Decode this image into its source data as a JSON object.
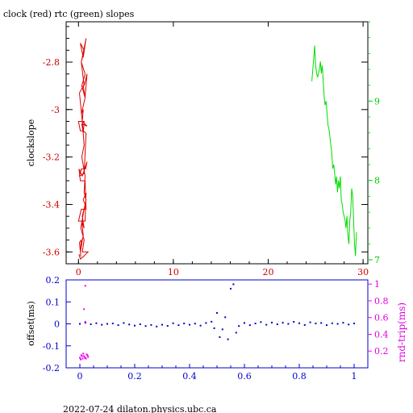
{
  "colors": {
    "clock": "#dd0000",
    "rtc": "#00dd00",
    "offset": "#0000cc",
    "rndtrip": "#ee00ee",
    "frame": "#000000"
  },
  "footer": "2022-07-24 dilaton.physics.ubc.ca",
  "chart_data": [
    {
      "type": "line",
      "title": "clock (red) rtc (green) slopes",
      "ylabel": "clockslope",
      "xlim": [
        -1.3,
        30.5
      ],
      "x_ticks": [
        0,
        10,
        20,
        30
      ],
      "ylim": [
        -3.65,
        -2.63
      ],
      "y_ticks": [
        -2.8,
        -3,
        -3.2,
        -3.4,
        -3.6
      ],
      "y_tick_labels": [
        "-2.8",
        "-3",
        "-3.2",
        "-3.4",
        "-3.6"
      ],
      "y2lim": [
        6.95,
        10.0
      ],
      "y2_ticks": [
        7,
        8,
        9
      ],
      "grid": false,
      "series": [
        {
          "name": "clock",
          "x": [
            0.25,
            0.1,
            0.3,
            0.2,
            0.5,
            0.35,
            0.6,
            0.4,
            0.7,
            0.5,
            0.8,
            0.7,
            0.2,
            0.0,
            0.3,
            0.8,
            0.7,
            0.2,
            0.05,
            0.4,
            0.9,
            0.75,
            0.3,
            0.1,
            0.6,
            0.8,
            0.5,
            0.2,
            0.0,
            0.6,
            0.5,
            0.35,
            0.9,
            0.4,
            0.1,
            0.5,
            0.7,
            0.35,
            0.7,
            0.3,
            0.6,
            0.2,
            0.5,
            0.8,
            0.3,
            0.6,
            0.9,
            0.7,
            0.3,
            0.5,
            0.4,
            0.6,
            0.35,
            0.7,
            0.6,
            0.8,
            0.5,
            0.25,
            0.6,
            0.4,
            1.0,
            0.5,
            0.2,
            0.05
          ],
          "y": [
            -3.62,
            -3.56,
            -3.55,
            -3.6,
            -3.53,
            -3.47,
            -3.5,
            -3.45,
            -3.4,
            -3.38,
            -3.35,
            -3.47,
            -3.47,
            -3.47,
            -3.42,
            -3.42,
            -3.3,
            -3.3,
            -3.25,
            -3.28,
            -3.22,
            -3.25,
            -3.25,
            -3.28,
            -3.27,
            -3.1,
            -3.09,
            -3.09,
            -3.05,
            -3.05,
            -3.1,
            -3.06,
            -3.07,
            -3.05,
            -2.93,
            -2.9,
            -2.95,
            -2.9,
            -2.85,
            -2.8,
            -2.75,
            -2.72,
            -2.78,
            -2.7,
            -2.8,
            -2.9,
            -2.85,
            -2.95,
            -3.02,
            -3.0,
            -3.05,
            -3.15,
            -3.2,
            -3.28,
            -3.35,
            -3.38,
            -3.44,
            -3.5,
            -3.55,
            -3.6,
            -3.6,
            -3.62,
            -3.63,
            -3.61
          ]
        },
        {
          "name": "rtc",
          "axis": "right",
          "x": [
            24.6,
            24.8,
            24.9,
            25.0,
            25.1,
            25.2,
            25.4,
            25.5,
            25.6,
            25.7,
            25.8,
            25.9,
            26.0,
            26.1,
            26.2,
            26.3,
            26.4,
            26.5,
            26.6,
            26.7,
            26.8,
            26.9,
            27.0,
            27.1,
            27.2,
            27.3,
            27.4,
            27.5,
            27.6,
            27.7,
            27.8,
            27.9,
            28.0,
            28.1,
            28.2,
            28.3,
            28.4,
            28.5,
            28.6,
            28.7,
            28.8,
            28.9,
            29.0,
            29.1,
            29.2,
            29.3
          ],
          "y": [
            9.25,
            9.55,
            9.7,
            9.45,
            9.35,
            9.3,
            9.4,
            9.5,
            9.35,
            9.45,
            9.25,
            9.05,
            8.95,
            9.0,
            8.85,
            8.7,
            8.65,
            8.55,
            8.45,
            8.35,
            8.15,
            8.2,
            8.1,
            7.95,
            8.05,
            7.85,
            8.0,
            7.9,
            8.05,
            7.75,
            7.7,
            7.6,
            7.55,
            7.5,
            7.4,
            7.55,
            7.3,
            7.2,
            7.5,
            7.6,
            7.9,
            7.8,
            7.5,
            7.2,
            7.05,
            7.35
          ]
        }
      ]
    },
    {
      "type": "scatter",
      "ylabel": "offset(ms)",
      "y2label": "rnd-trip(ms)",
      "xlim": [
        -0.05,
        1.05
      ],
      "x_ticks": [
        0,
        0.2,
        0.4,
        0.6,
        0.8,
        1
      ],
      "ylim": [
        -0.2,
        0.2
      ],
      "y_ticks": [
        0.2,
        0.1,
        0,
        -0.1,
        -0.2
      ],
      "y2lim": [
        0,
        1.05
      ],
      "y2_ticks": [
        0.2,
        0.4,
        0.6,
        0.8,
        1
      ],
      "grid": false,
      "series": [
        {
          "name": "offset",
          "x": [
            0.0,
            0.02,
            0.04,
            0.06,
            0.08,
            0.1,
            0.12,
            0.14,
            0.16,
            0.18,
            0.2,
            0.22,
            0.24,
            0.26,
            0.28,
            0.3,
            0.32,
            0.34,
            0.36,
            0.38,
            0.4,
            0.42,
            0.44,
            0.46,
            0.48,
            0.49,
            0.5,
            0.51,
            0.52,
            0.53,
            0.54,
            0.55,
            0.56,
            0.57,
            0.58,
            0.6,
            0.62,
            0.64,
            0.66,
            0.68,
            0.7,
            0.72,
            0.74,
            0.76,
            0.78,
            0.8,
            0.82,
            0.84,
            0.86,
            0.88,
            0.9,
            0.92,
            0.94,
            0.96,
            0.98,
            1.0
          ],
          "y": [
            0.0,
            0.005,
            -0.002,
            0.003,
            -0.004,
            0.0,
            0.002,
            -0.006,
            0.004,
            -0.003,
            -0.008,
            -0.002,
            -0.01,
            -0.005,
            -0.012,
            -0.004,
            -0.009,
            0.003,
            -0.006,
            0.002,
            -0.004,
            0.001,
            -0.008,
            0.004,
            0.01,
            -0.02,
            0.05,
            -0.06,
            -0.025,
            0.03,
            -0.07,
            0.16,
            0.18,
            -0.04,
            -0.01,
            0.004,
            -0.006,
            0.002,
            0.008,
            -0.004,
            0.006,
            -0.002,
            0.005,
            0.0,
            0.009,
            0.003,
            -0.005,
            0.007,
            0.002,
            0.004,
            -0.006,
            0.003,
            0.0,
            0.005,
            -0.003,
            0.002
          ]
        },
        {
          "name": "rnd-trip",
          "axis": "right",
          "x": [
            0.0,
            0.005,
            0.01,
            0.015,
            0.02,
            0.025,
            0.03,
            0.003,
            0.012,
            0.022,
            0.008,
            0.018,
            0.028,
            0.02,
            0.015,
            0.02
          ],
          "y": [
            0.12,
            0.15,
            0.11,
            0.14,
            0.12,
            0.16,
            0.13,
            0.1,
            0.17,
            0.11,
            0.14,
            0.12,
            0.15,
            0.98,
            0.7,
            0.55
          ]
        }
      ]
    }
  ]
}
